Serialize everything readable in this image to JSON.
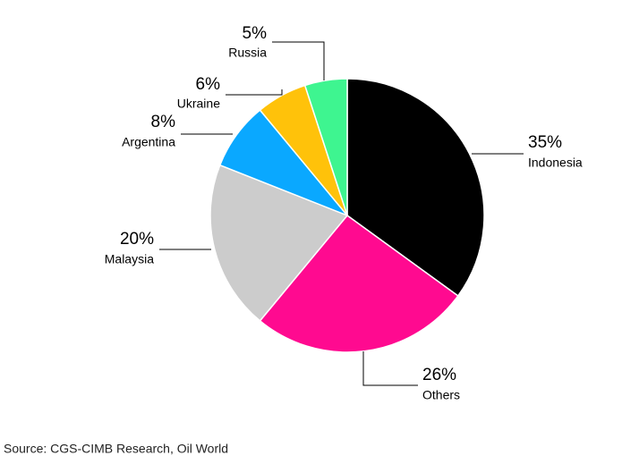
{
  "chart_data": {
    "type": "pie",
    "categories": [
      "Indonesia",
      "Others",
      "Malaysia",
      "Argentina",
      "Ukraine",
      "Russia"
    ],
    "values": [
      35,
      26,
      20,
      8,
      6,
      5
    ],
    "value_labels": [
      "35%",
      "26%",
      "20%",
      "8%",
      "6%",
      "5%"
    ],
    "colors": [
      "#000000",
      "#ff0a90",
      "#cccccc",
      "#0aa8ff",
      "#ffc20a",
      "#3ef590"
    ],
    "source": "Source: CGS-CIMB Research, Oil World"
  }
}
